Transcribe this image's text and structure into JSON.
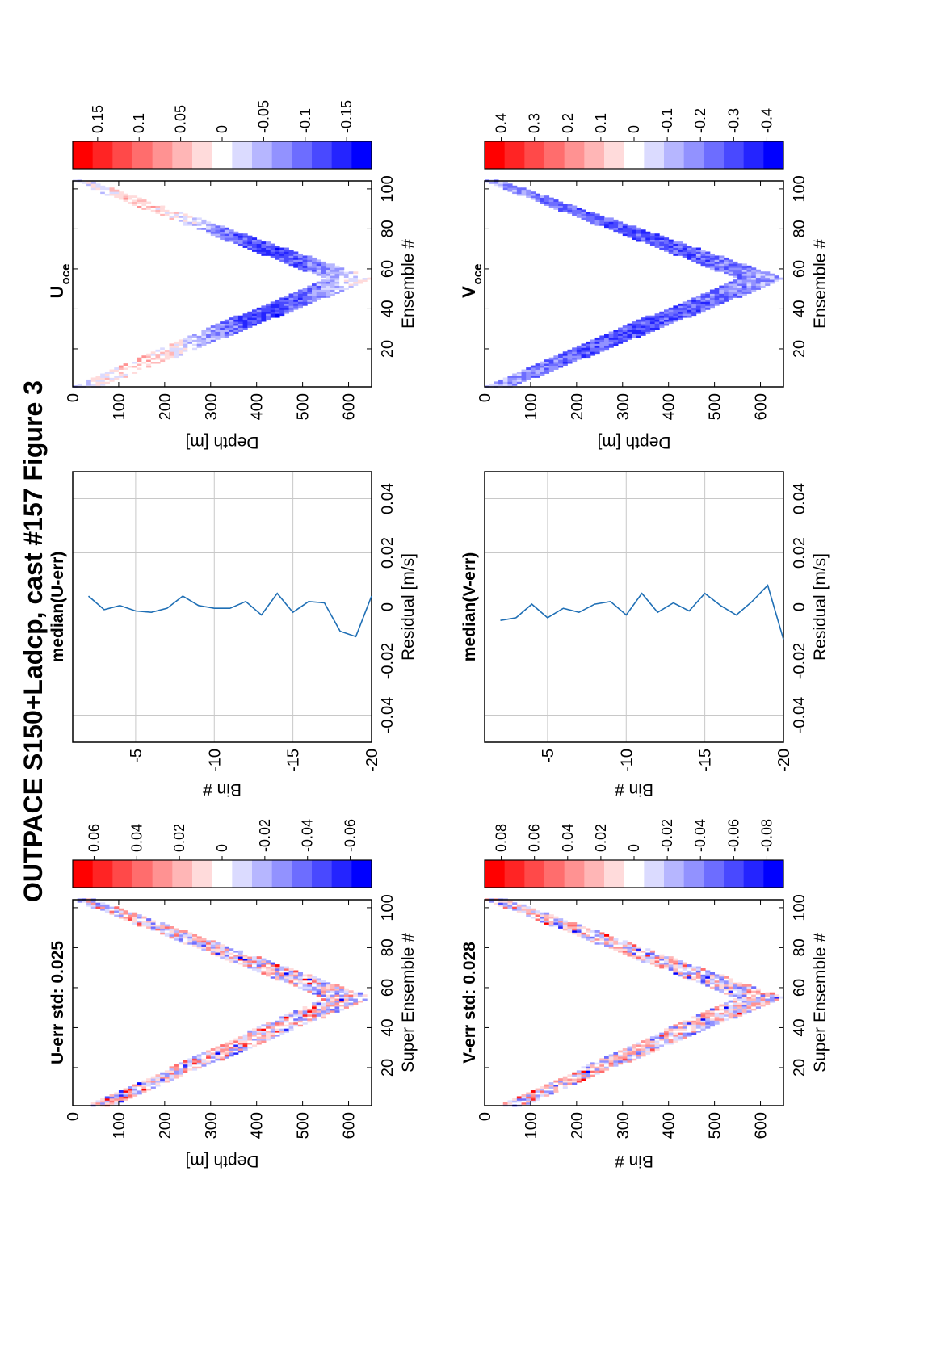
{
  "figure": {
    "title": "OUTPACE S150+Ladcp, cast #157  Figure 3"
  },
  "colors": {
    "line": "#1f6fb5",
    "grid": "#c8c8c8",
    "axis": "#000000",
    "pos_max": "#ff0000",
    "neg_max": "#0000ff"
  },
  "chart_data": [
    {
      "id": "u_err",
      "type": "heatmap",
      "title": "U-err std: 0.025",
      "xlabel": "Super Ensemble #",
      "ylabel": "Depth [m]",
      "x_ticks": [
        20,
        40,
        60,
        80,
        100
      ],
      "y_ticks": [
        0,
        100,
        200,
        300,
        400,
        500,
        600
      ],
      "xlim": [
        1,
        104
      ],
      "ylim": [
        0,
        650
      ],
      "bottom_ensemble": 55,
      "band": [
        [
          1,
          40,
          80
        ],
        [
          55,
          550,
          645
        ],
        [
          104,
          5,
          45
        ]
      ],
      "colorbar": {
        "labels": [
          "0.06",
          "0.04",
          "0.02",
          "0",
          "-0.02",
          "-0.04",
          "-0.06"
        ],
        "values": [
          0.06,
          0.04,
          0.02,
          0,
          -0.02,
          -0.04,
          -0.06
        ],
        "max": 0.07
      }
    },
    {
      "id": "median_u",
      "type": "line",
      "title": "median(U-err)",
      "xlabel": "Residual [m/s]",
      "ylabel": "Bin #",
      "x_ticks": [
        "-0.04",
        "-0.02",
        "0",
        "0.02",
        "0.04"
      ],
      "x_tick_values": [
        -0.04,
        -0.02,
        0,
        0.02,
        0.04
      ],
      "y_ticks": [
        "-5",
        "-10",
        "-15",
        "-20"
      ],
      "y_tick_values": [
        -5,
        -10,
        -15,
        -20
      ],
      "xlim": [
        -0.05,
        0.05
      ],
      "ylim": [
        -20,
        -1
      ],
      "bin": [
        -2,
        -3,
        -4,
        -5,
        -6,
        -7,
        -8,
        -9,
        -10,
        -11,
        -12,
        -13,
        -14,
        -15,
        -16,
        -17,
        -18,
        -19,
        -20
      ],
      "residual": [
        0.004,
        -0.001,
        0.0005,
        -0.0015,
        -0.002,
        -0.0005,
        0.004,
        0.0005,
        -0.0005,
        -0.0005,
        0.002,
        -0.003,
        0.005,
        -0.002,
        0.002,
        0.0015,
        -0.009,
        -0.011,
        0.004
      ]
    },
    {
      "id": "u_oce",
      "type": "heatmap",
      "title": "U",
      "title_sub": "oce",
      "xlabel": "Ensemble #",
      "ylabel": "Depth [m]",
      "x_ticks": [
        20,
        40,
        60,
        80,
        100
      ],
      "y_ticks": [
        0,
        100,
        200,
        300,
        400,
        500,
        600
      ],
      "xlim": [
        1,
        104
      ],
      "ylim": [
        0,
        650
      ],
      "bottom_ensemble": 55,
      "band": [
        [
          1,
          0,
          55
        ],
        [
          55,
          555,
          650
        ],
        [
          104,
          0,
          30
        ]
      ],
      "colorbar": {
        "labels": [
          "0.15",
          "0.1",
          "0.05",
          "0",
          "-0.05",
          "-0.1",
          "-0.15"
        ],
        "values": [
          0.15,
          0.1,
          0.05,
          0,
          -0.05,
          -0.1,
          -0.15
        ],
        "max": 0.18
      }
    },
    {
      "id": "v_err",
      "type": "heatmap",
      "title": "V-err std: 0.028",
      "xlabel": "Super Ensemble #",
      "ylabel": "Bin #",
      "x_ticks": [
        20,
        40,
        60,
        80,
        100
      ],
      "y_ticks": [
        0,
        100,
        200,
        300,
        400,
        500,
        600
      ],
      "xlim": [
        1,
        104
      ],
      "ylim": [
        0,
        650
      ],
      "bottom_ensemble": 55,
      "band": [
        [
          1,
          40,
          80
        ],
        [
          55,
          550,
          645
        ],
        [
          104,
          5,
          45
        ]
      ],
      "colorbar": {
        "labels": [
          "0.08",
          "0.06",
          "0.04",
          "0.02",
          "0",
          "-0.02",
          "-0.04",
          "-0.06",
          "-0.08"
        ],
        "values": [
          0.08,
          0.06,
          0.04,
          0.02,
          0,
          -0.02,
          -0.04,
          -0.06,
          -0.08
        ],
        "max": 0.09
      }
    },
    {
      "id": "median_v",
      "type": "line",
      "title": "median(V-err)",
      "xlabel": "Residual [m/s]",
      "ylabel": "Bin #",
      "x_ticks": [
        "-0.04",
        "-0.02",
        "0",
        "0.02",
        "0.04"
      ],
      "x_tick_values": [
        -0.04,
        -0.02,
        0,
        0.02,
        0.04
      ],
      "y_ticks": [
        "-5",
        "-10",
        "-15",
        "-20"
      ],
      "y_tick_values": [
        -5,
        -10,
        -15,
        -20
      ],
      "xlim": [
        -0.05,
        0.05
      ],
      "ylim": [
        -20,
        -1
      ],
      "bin": [
        -2,
        -3,
        -4,
        -5,
        -6,
        -7,
        -8,
        -9,
        -10,
        -11,
        -12,
        -13,
        -14,
        -15,
        -16,
        -17,
        -18,
        -19,
        -20
      ],
      "residual": [
        -0.005,
        -0.004,
        0.001,
        -0.004,
        -0.0005,
        -0.002,
        0.001,
        0.002,
        -0.003,
        0.005,
        -0.002,
        0.0015,
        -0.0015,
        0.005,
        0.0005,
        -0.003,
        0.002,
        0.008,
        -0.012
      ]
    },
    {
      "id": "v_oce",
      "type": "heatmap",
      "title": "V",
      "title_sub": "oce",
      "xlabel": "Ensemble #",
      "ylabel": "Depth [m]",
      "x_ticks": [
        20,
        40,
        60,
        80,
        100
      ],
      "y_ticks": [
        0,
        100,
        200,
        300,
        400,
        500,
        600
      ],
      "xlim": [
        1,
        104
      ],
      "ylim": [
        0,
        650
      ],
      "bottom_ensemble": 55,
      "band": [
        [
          1,
          0,
          55
        ],
        [
          55,
          555,
          650
        ],
        [
          104,
          0,
          30
        ]
      ],
      "colorbar": {
        "labels": [
          "0.4",
          "0.3",
          "0.2",
          "0.1",
          "0",
          "-0.1",
          "-0.2",
          "-0.3",
          "-0.4"
        ],
        "values": [
          0.4,
          0.3,
          0.2,
          0.1,
          0,
          -0.1,
          -0.2,
          -0.3,
          -0.4
        ],
        "max": 0.45
      }
    }
  ]
}
